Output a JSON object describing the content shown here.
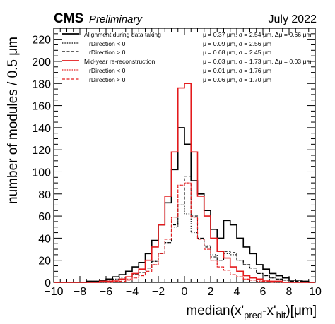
{
  "header": {
    "experiment": "CMS",
    "status": "Preliminary",
    "date": "July 2022"
  },
  "chart_data": {
    "type": "histogram",
    "xlabel_main": "median(x'",
    "xlabel_sub1": "pred",
    "xlabel_mid": "-x'",
    "xlabel_sub2": "hit",
    "xlabel_end": ")[μm]",
    "ylabel": "number of modules / 0.5 μm",
    "xlim": [
      -10,
      10
    ],
    "ylim": [
      0,
      230
    ],
    "xticks": [
      "−10",
      "−8",
      "−6",
      "−4",
      "−2",
      "0",
      "2",
      "4",
      "6",
      "8",
      "10"
    ],
    "yticks": [
      "0",
      "20",
      "40",
      "60",
      "80",
      "100",
      "120",
      "140",
      "160",
      "180",
      "200",
      "220"
    ],
    "bin_edges": [
      -10,
      -9.5,
      -9,
      -8.5,
      -8,
      -7.5,
      -7,
      -6.5,
      -6,
      -5.5,
      -5,
      -4.5,
      -4,
      -3.5,
      -3,
      -2.5,
      -2,
      -1.5,
      -1,
      -0.5,
      0,
      0.5,
      1,
      1.5,
      2,
      2.5,
      3,
      3.5,
      4,
      4.5,
      5,
      5.5,
      6,
      6.5,
      7,
      7.5,
      8,
      8.5,
      9,
      9.5,
      10
    ],
    "series": [
      {
        "name": "Alignment during data taking",
        "stats": "μ = 0.37 μm, σ = 2.54 μm, Δμ = 0.66 μm",
        "color": "#000000",
        "style": "solid",
        "values": [
          0,
          0,
          0,
          0,
          0,
          1,
          1,
          2,
          3,
          5,
          7,
          10,
          14,
          18,
          26,
          38,
          52,
          72,
          102,
          140,
          125,
          92,
          80,
          65,
          48,
          40,
          56,
          52,
          40,
          32,
          26,
          16,
          12,
          8,
          6,
          4,
          2,
          2,
          1,
          0
        ]
      },
      {
        "name": "rDirection < 0",
        "stats": "μ = 0.09 μm, σ = 2.56 μm",
        "color": "#000000",
        "style": "dotted",
        "values": [
          0,
          0,
          0,
          0,
          0,
          0,
          1,
          1,
          2,
          3,
          4,
          5,
          7,
          9,
          13,
          19,
          26,
          36,
          50,
          70,
          62,
          45,
          40,
          33,
          25,
          20,
          26,
          25,
          20,
          16,
          13,
          8,
          6,
          4,
          3,
          2,
          1,
          1,
          0,
          0
        ]
      },
      {
        "name": "rDirection > 0",
        "stats": "μ = 0.68 μm, σ = 2.45 μm",
        "color": "#000000",
        "style": "dashed",
        "values": [
          0,
          0,
          0,
          0,
          0,
          1,
          0,
          1,
          1,
          2,
          3,
          5,
          7,
          9,
          13,
          19,
          26,
          36,
          52,
          70,
          96,
          60,
          40,
          32,
          23,
          20,
          28,
          27,
          20,
          16,
          13,
          8,
          6,
          4,
          3,
          2,
          1,
          1,
          1,
          0
        ]
      },
      {
        "name": "Mid-year re-reconstruction",
        "stats": "μ = 0.03 μm, σ = 1.73 μm, Δμ = 0.03 μm",
        "color": "#e41a1c",
        "style": "solid",
        "values": [
          0,
          0,
          0,
          0,
          0,
          0,
          0,
          1,
          1,
          2,
          3,
          5,
          8,
          12,
          20,
          32,
          52,
          78,
          118,
          176,
          180,
          118,
          78,
          60,
          40,
          28,
          22,
          14,
          10,
          6,
          4,
          3,
          2,
          1,
          1,
          0,
          0,
          0,
          0,
          0
        ]
      },
      {
        "name": "rDirection < 0",
        "stats": "μ = 0.01 μm, σ = 1.76 μm",
        "color": "#e41a1c",
        "style": "dotted",
        "values": [
          0,
          0,
          0,
          0,
          0,
          0,
          0,
          0,
          1,
          1,
          2,
          3,
          4,
          6,
          10,
          16,
          26,
          39,
          59,
          88,
          90,
          59,
          39,
          30,
          20,
          14,
          11,
          7,
          5,
          3,
          2,
          1,
          1,
          1,
          0,
          0,
          0,
          0,
          0,
          0
        ]
      },
      {
        "name": "rDirection > 0",
        "stats": "μ = 0.06 μm, σ = 1.70 μm",
        "color": "#e41a1c",
        "style": "dashed",
        "values": [
          0,
          0,
          0,
          0,
          0,
          0,
          0,
          1,
          0,
          1,
          1,
          2,
          4,
          6,
          10,
          16,
          26,
          39,
          59,
          88,
          90,
          59,
          39,
          30,
          20,
          14,
          11,
          7,
          5,
          3,
          2,
          2,
          1,
          0,
          1,
          0,
          0,
          0,
          0,
          0
        ]
      }
    ]
  }
}
